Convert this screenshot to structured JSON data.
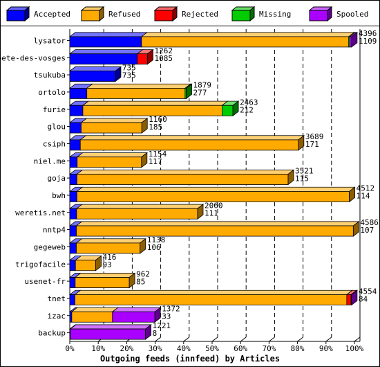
{
  "legend": [
    {
      "label": "Accepted",
      "color": "#0000ff"
    },
    {
      "label": "Refused",
      "color": "#ffaa00"
    },
    {
      "label": "Rejected",
      "color": "#ff0000"
    },
    {
      "label": "Missing",
      "color": "#00cc00"
    },
    {
      "label": "Spooled",
      "color": "#aa00ff"
    }
  ],
  "chart_data": {
    "type": "bar",
    "orientation": "horizontal",
    "stacked": true,
    "xlabel": "Outgoing feeds (innfeed) by Articles",
    "x_ticks": [
      "0%",
      "10%",
      "20%",
      "30%",
      "40%",
      "50%",
      "60%",
      "70%",
      "80%",
      "90%",
      "100%"
    ],
    "xlim": [
      0,
      100
    ],
    "grid": true,
    "series_names": [
      "Accepted",
      "Refused",
      "Rejected",
      "Missing",
      "Spooled"
    ],
    "colors": [
      "#0000ff",
      "#ffaa00",
      "#ff0000",
      "#00cc00",
      "#aa00ff"
    ],
    "feeds": [
      {
        "name": "lysator",
        "total": "4396",
        "accepted": "1109",
        "pct": [
          25.2,
          72.8,
          0,
          0.4,
          0.6
        ]
      },
      {
        "name": "bete-des-vosges",
        "total": "1262",
        "accepted": "1085",
        "pct": [
          23.7,
          0,
          3.6,
          0,
          0
        ]
      },
      {
        "name": "tsukuba",
        "total": "735",
        "accepted": "735",
        "pct": [
          16.0,
          0,
          0,
          0,
          0
        ]
      },
      {
        "name": "ortolo",
        "total": "1879",
        "accepted": "277",
        "pct": [
          6.0,
          34.5,
          0,
          0.4,
          0
        ]
      },
      {
        "name": "furie",
        "total": "2463",
        "accepted": "212",
        "pct": [
          4.6,
          48.9,
          0,
          3.8,
          0
        ]
      },
      {
        "name": "glou",
        "total": "1160",
        "accepted": "185",
        "pct": [
          4.0,
          21.3,
          0,
          0,
          0
        ]
      },
      {
        "name": "csiph",
        "total": "3689",
        "accepted": "171",
        "pct": [
          3.7,
          76.6,
          0,
          0,
          0
        ]
      },
      {
        "name": "niel.me",
        "total": "1154",
        "accepted": "117",
        "pct": [
          2.6,
          22.6,
          0,
          0,
          0
        ]
      },
      {
        "name": "goja",
        "total": "3521",
        "accepted": "115",
        "pct": [
          2.5,
          74.2,
          0,
          0,
          0
        ]
      },
      {
        "name": "bwh",
        "total": "4512",
        "accepted": "114",
        "pct": [
          2.5,
          95.7,
          0,
          0,
          0
        ]
      },
      {
        "name": "weretis.net",
        "total": "2060",
        "accepted": "111",
        "pct": [
          2.4,
          42.5,
          0,
          0,
          0
        ]
      },
      {
        "name": "nntp4",
        "total": "4586",
        "accepted": "107",
        "pct": [
          2.3,
          97.3,
          0,
          0,
          0
        ]
      },
      {
        "name": "gegeweb",
        "total": "1138",
        "accepted": "106",
        "pct": [
          2.3,
          22.4,
          0,
          0,
          0
        ]
      },
      {
        "name": "trigofacile",
        "total": "416",
        "accepted": "93",
        "pct": [
          2.0,
          7.1,
          0,
          0,
          0
        ]
      },
      {
        "name": "usenet-fr",
        "total": "962",
        "accepted": "85",
        "pct": [
          1.9,
          19.0,
          0,
          0,
          0
        ]
      },
      {
        "name": "tnet",
        "total": "4554",
        "accepted": "84",
        "pct": [
          1.8,
          95.5,
          1.5,
          0,
          0.2
        ]
      },
      {
        "name": "izac",
        "total": "1372",
        "accepted": "33",
        "pct": [
          0.7,
          14.3,
          0,
          0,
          14.9
        ]
      },
      {
        "name": "backup",
        "total": "1221",
        "accepted": "8",
        "pct": [
          0.2,
          0,
          0,
          0,
          26.4
        ]
      }
    ]
  }
}
